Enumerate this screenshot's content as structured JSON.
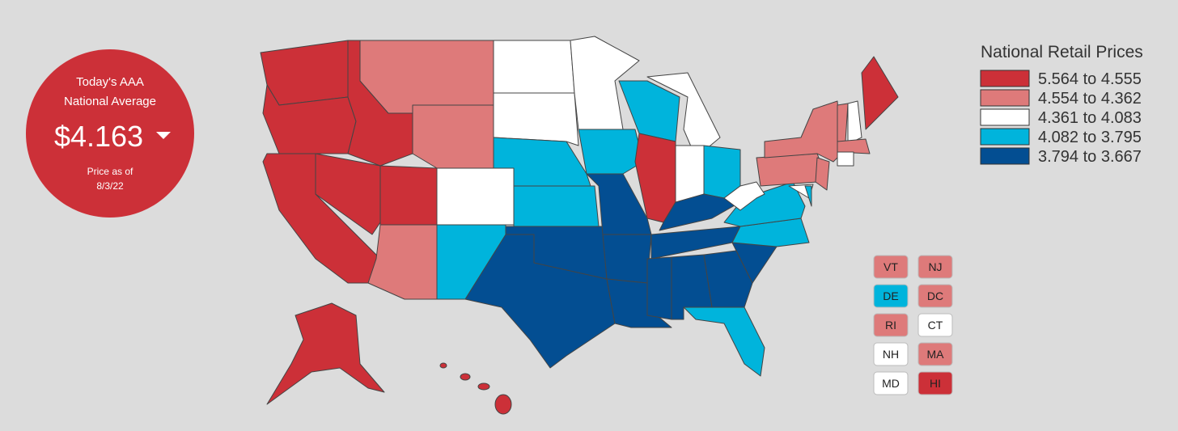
{
  "badge": {
    "title_lines": [
      "Today's AAA",
      "National Average"
    ],
    "price": "$4.163",
    "note_lines": [
      "Price as of",
      "8/3/22"
    ],
    "color": "#cc3038"
  },
  "legend": {
    "title": "National Retail Prices",
    "items": [
      {
        "label": "5.564 to 4.555",
        "color": "#cc3038"
      },
      {
        "label": "4.554 to 4.362",
        "color": "#de7a7a"
      },
      {
        "label": "4.361 to 4.083",
        "color": "#ffffff"
      },
      {
        "label": "4.082 to 3.795",
        "color": "#00b4dc"
      },
      {
        "label": "3.794 to 3.667",
        "color": "#034e92"
      }
    ]
  },
  "small_states": [
    {
      "label": "VT",
      "color": "#de7a7a"
    },
    {
      "label": "NJ",
      "color": "#de7a7a"
    },
    {
      "label": "DE",
      "color": "#00b4dc"
    },
    {
      "label": "DC",
      "color": "#de7a7a"
    },
    {
      "label": "RI",
      "color": "#de7a7a"
    },
    {
      "label": "CT",
      "color": "#ffffff"
    },
    {
      "label": "NH",
      "color": "#ffffff"
    },
    {
      "label": "MA",
      "color": "#de7a7a"
    },
    {
      "label": "MD",
      "color": "#ffffff"
    },
    {
      "label": "HI",
      "color": "#cc3038"
    }
  ]
}
